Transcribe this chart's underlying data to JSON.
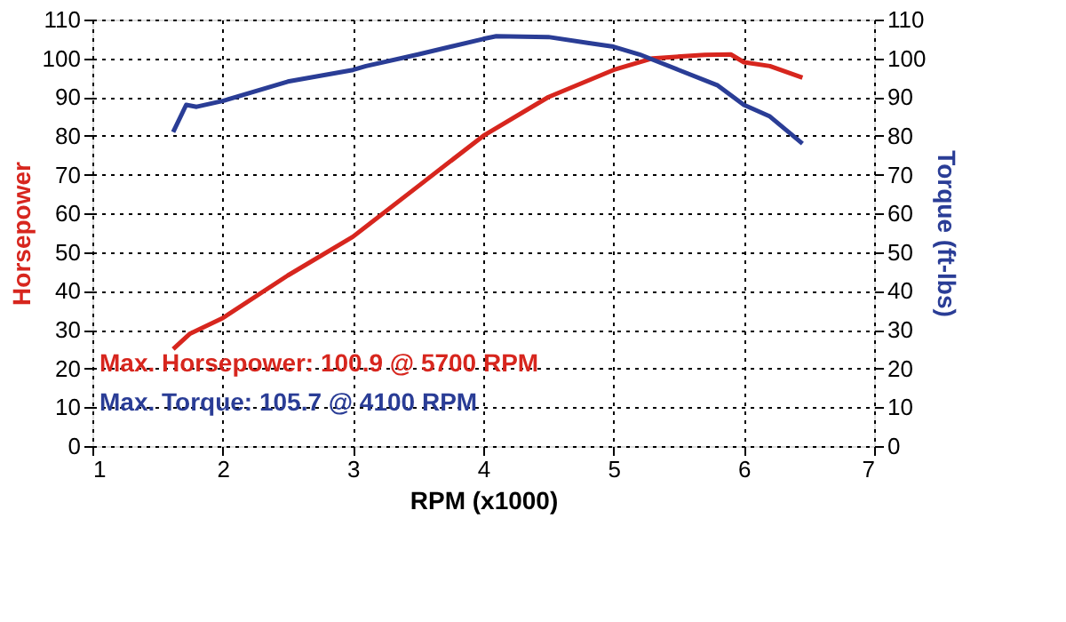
{
  "chart_data": {
    "type": "line",
    "xlabel": "RPM (x1000)",
    "ylabel": "Horsepower",
    "y2label": "Torque (ft-lbs)",
    "xlim": [
      1,
      7
    ],
    "xticks": [
      1,
      2,
      3,
      4,
      5,
      6,
      7
    ],
    "ylim": [
      0,
      110
    ],
    "yticks": [
      0,
      10,
      20,
      30,
      40,
      50,
      60,
      70,
      80,
      90,
      100,
      110
    ],
    "y2lim": [
      0,
      110
    ],
    "y2ticks": [
      0,
      10,
      20,
      30,
      40,
      50,
      60,
      70,
      80,
      90,
      100,
      110
    ],
    "grid": true,
    "line_style": "solid",
    "marker": "none",
    "series": [
      {
        "color": "#d7261e",
        "x": [
          1.62,
          1.75,
          2,
          2.5,
          3,
          3.5,
          4,
          4.5,
          5,
          5.3,
          5.7,
          5.9,
          6.0,
          6.2,
          6.45
        ],
        "values": [
          25,
          29,
          33,
          44,
          54,
          67,
          80,
          90,
          97,
          100,
          100.9,
          101,
          99,
          98,
          95
        ]
      },
      {
        "color": "#2a3d96",
        "axis": "y2",
        "x": [
          1.62,
          1.72,
          1.8,
          2,
          2.5,
          3,
          3.1,
          3.5,
          4,
          4.1,
          4.5,
          4.8,
          5,
          5.2,
          5.5,
          5.8,
          6,
          6.2,
          6.45
        ],
        "values": [
          81,
          88,
          87.5,
          89,
          94,
          97,
          98,
          101,
          105,
          105.7,
          105.5,
          104,
          103,
          101,
          97,
          93,
          88,
          85,
          78
        ]
      }
    ],
    "annotations": [
      "Max. Horsepower: 100.9 @ 5700 RPM",
      "Max. Torque: 105.7 @ 4100 RPM"
    ]
  }
}
